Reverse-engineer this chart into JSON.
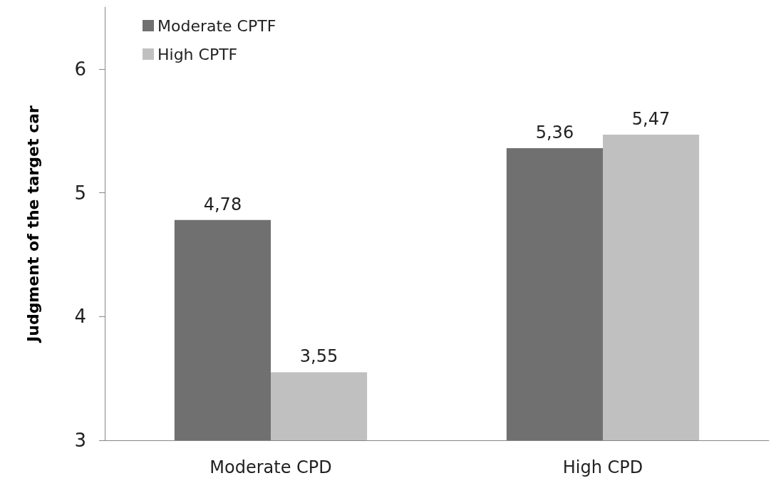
{
  "chart_data": {
    "type": "bar",
    "ylabel": "Judgment of the target car",
    "categories": [
      "Moderate CPD",
      "High CPD"
    ],
    "series": [
      {
        "name": "Moderate CPTF",
        "color": "#707070",
        "values": [
          4.78,
          5.36
        ],
        "value_labels": [
          "4,78",
          "5,36"
        ]
      },
      {
        "name": "High CPTF",
        "color": "#c0c0c0",
        "values": [
          3.55,
          5.47
        ],
        "value_labels": [
          "3,55",
          "5,47"
        ]
      }
    ],
    "ylim": [
      3,
      6.5
    ],
    "yticks": [
      3,
      4,
      5,
      6
    ],
    "grid": false,
    "legend": "top left"
  }
}
